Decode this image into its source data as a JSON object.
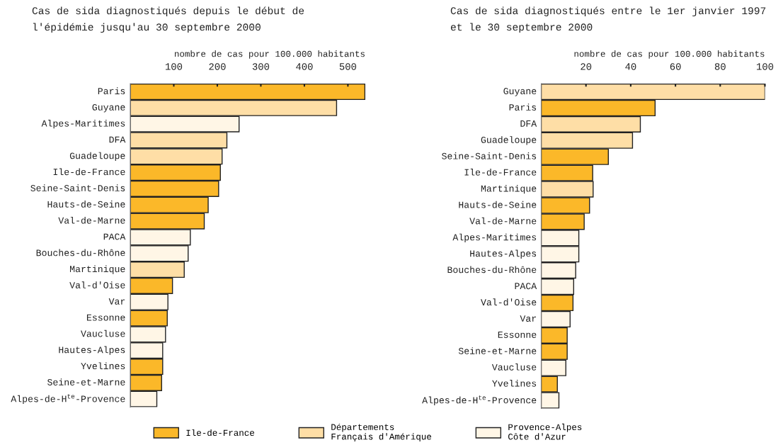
{
  "chart_data": [
    {
      "type": "bar",
      "orientation": "horizontal",
      "title": "Cas de sida diagnostiqués depuis le début de\nl'épidémie jusqu'au 30 septembre 2000",
      "xlabel": "nombre de cas pour 100.000 habitants",
      "categories": [
        "Paris",
        "Guyane",
        "Alpes-Maritimes",
        "DFA",
        "Guadeloupe",
        "Ile-de-France",
        "Seine-Saint-Denis",
        "Hauts-de-Seine",
        "Val-de-Marne",
        "PACA",
        "Bouches-du-Rhône",
        "Martinique",
        "Val-d'Oise",
        "Var",
        "Essonne",
        "Vaucluse",
        "Hautes-Alpes",
        "Yvelines",
        "Seine-et-Marne",
        "Alpes-de-H$^{te}$-Provence"
      ],
      "series": [
        {
          "name": "Ile-de-France",
          "color": "#fbb829",
          "values": [
            539,
            null,
            null,
            null,
            null,
            207,
            203,
            179,
            170,
            null,
            null,
            null,
            97,
            null,
            85,
            null,
            null,
            74.5,
            72,
            null
          ]
        },
        {
          "name": "Départements\nFrançais d'Amérique",
          "color": "#fedea6",
          "values": [
            null,
            474,
            null,
            222,
            211,
            null,
            null,
            null,
            null,
            null,
            null,
            124,
            null,
            null,
            null,
            null,
            null,
            null,
            null,
            null
          ]
        },
        {
          "name": "Provence-Alpes\nCôte d'Azur",
          "color": "#fff6e6",
          "values": [
            null,
            null,
            250,
            null,
            null,
            null,
            null,
            null,
            null,
            138,
            133,
            null,
            null,
            86.5,
            null,
            81,
            74.5,
            null,
            null,
            61
          ]
        }
      ],
      "xlim": [
        0,
        540
      ],
      "xticks": [
        100,
        200,
        300,
        400,
        500
      ],
      "grid": false,
      "legend": "bottom"
    },
    {
      "type": "bar",
      "orientation": "horizontal",
      "title": "Cas de sida diagnostiqués entre le 1er janvier 1997\net le 30 septembre 2000",
      "xlabel": "nombre de cas pour 100.000 habitants",
      "categories": [
        "Guyane",
        "Paris",
        "DFA",
        "Guadeloupe",
        "Seine-Saint-Denis",
        "Ile-de-France",
        "Martinique",
        "Hauts-de-Seine",
        "Val-de-Marne",
        "Alpes-Maritimes",
        "Hautes-Alpes",
        "Bouches-du-Rhône",
        "PACA",
        "Val-d'Oise",
        "Var",
        "Essonne",
        "Seine-et-Marne",
        "Vaucluse",
        "Yvelines",
        "Alpes-de-H$^{te}$-Provence"
      ],
      "series": [
        {
          "color": "#fbb829",
          "values": [
            null,
            50.9,
            null,
            null,
            30,
            23,
            null,
            21.6,
            19.2,
            null,
            null,
            null,
            null,
            14.2,
            null,
            11.6,
            11.6,
            null,
            7.2,
            null
          ]
        },
        {
          "color": "#fedea6",
          "values": [
            100,
            null,
            44.3,
            40.8,
            null,
            null,
            23.2,
            null,
            null,
            null,
            null,
            null,
            null,
            null,
            null,
            null,
            null,
            null,
            null,
            null
          ]
        },
        {
          "color": "#fff6e6",
          "values": [
            null,
            null,
            null,
            null,
            null,
            null,
            null,
            null,
            null,
            16.8,
            16.8,
            15.4,
            14.5,
            null,
            12.9,
            null,
            null,
            11,
            null,
            7.9
          ]
        }
      ],
      "xlim": [
        0,
        100
      ],
      "xticks": [
        20,
        40,
        60,
        80,
        100
      ],
      "grid": false
    }
  ]
}
